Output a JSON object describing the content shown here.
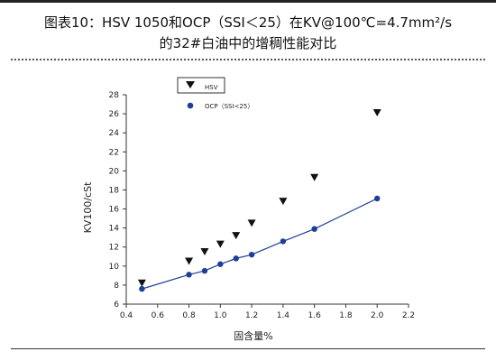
{
  "header": {
    "title_line1": "图表10：HSV 1050和OCP（SSI＜25）在KV@100℃=4.7mm²/s",
    "title_line2": "的32#白油中的增稠性能对比"
  },
  "chart_data": {
    "type": "scatter",
    "xlabel": "固含量%",
    "ylabel": "KV100/cSt",
    "xlim": [
      0.4,
      2.2
    ],
    "ylim": [
      6,
      28
    ],
    "xticks": [
      0.4,
      0.6,
      0.8,
      1.0,
      1.2,
      1.4,
      1.6,
      1.8,
      2.0,
      2.2
    ],
    "xtick_labels": [
      "0.4",
      "0.6",
      "0.8",
      "1.0",
      "1.2",
      "1.4",
      "1.6",
      "1.8",
      "2.0",
      "2.2"
    ],
    "yticks": [
      6,
      8,
      10,
      12,
      14,
      16,
      18,
      20,
      22,
      24,
      26,
      28
    ],
    "ytick_labels": [
      "6",
      "8",
      "10",
      "12",
      "14",
      "16",
      "18",
      "20",
      "22",
      "24",
      "26",
      "28"
    ],
    "grid": false,
    "legend_position": "top-left",
    "series": [
      {
        "name": "HSV",
        "marker": "triangle-down",
        "color": "#111111",
        "line": false,
        "x": [
          0.5,
          0.8,
          0.9,
          1.0,
          1.1,
          1.2,
          1.4,
          1.6,
          2.0
        ],
        "y": [
          8.2,
          10.5,
          11.5,
          12.3,
          13.2,
          14.5,
          16.8,
          19.3,
          26.1
        ]
      },
      {
        "name": "OCP（SSI<25）",
        "marker": "circle",
        "color": "#1f3f94",
        "line": true,
        "x": [
          0.5,
          0.8,
          0.9,
          1.0,
          1.1,
          1.2,
          1.4,
          1.6,
          2.0
        ],
        "y": [
          7.6,
          9.1,
          9.5,
          10.2,
          10.8,
          11.2,
          12.6,
          13.9,
          17.1
        ]
      }
    ]
  }
}
